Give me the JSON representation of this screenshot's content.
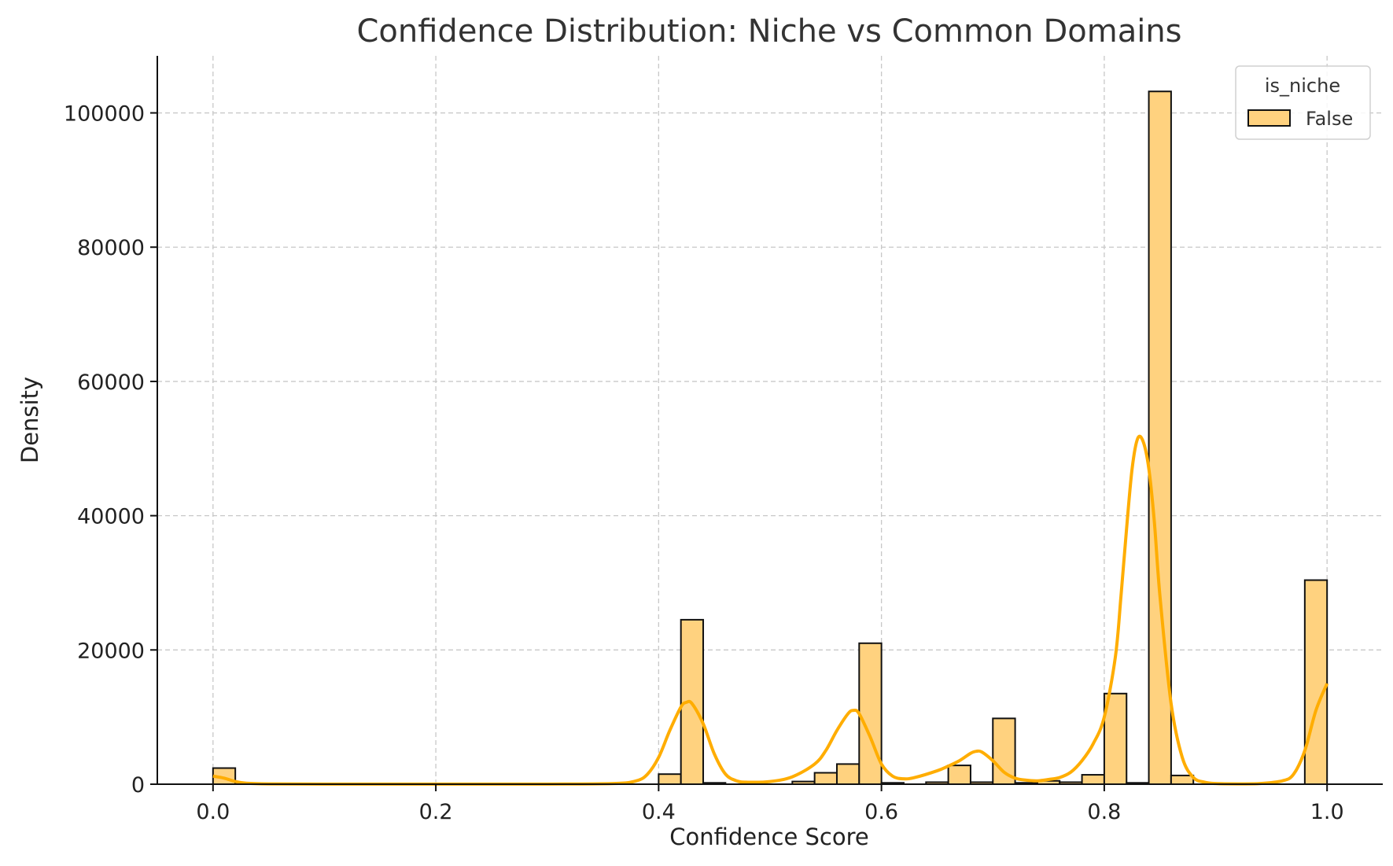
{
  "chart_data": {
    "type": "bar",
    "title": "Confidence Distribution: Niche vs Common Domains",
    "xlabel": "Confidence Score",
    "ylabel": "Density",
    "xlim": [
      -0.05,
      1.05
    ],
    "ylim": [
      0,
      108500
    ],
    "xticks": [
      0.0,
      0.2,
      0.4,
      0.6,
      0.8,
      1.0
    ],
    "xtick_labels": [
      "0.0",
      "0.2",
      "0.4",
      "0.6",
      "0.8",
      "1.0"
    ],
    "yticks": [
      0,
      20000,
      40000,
      60000,
      80000,
      100000
    ],
    "ytick_labels": [
      "0",
      "20000",
      "40000",
      "60000",
      "80000",
      "100000"
    ],
    "grid": true,
    "legend": {
      "title": "is_niche",
      "placement": "top-right",
      "entries": [
        "False"
      ]
    },
    "bin_width": 0.02,
    "series": [
      {
        "name": "False",
        "color": "#ffd27f",
        "edge_color": "#111111",
        "kde_color": "#ffad00",
        "bins": [
          {
            "x0": 0.0,
            "value": 2400
          },
          {
            "x0": 0.02,
            "value": 150
          },
          {
            "x0": 0.4,
            "value": 1500
          },
          {
            "x0": 0.42,
            "value": 24500
          },
          {
            "x0": 0.44,
            "value": 200
          },
          {
            "x0": 0.52,
            "value": 400
          },
          {
            "x0": 0.54,
            "value": 1700
          },
          {
            "x0": 0.56,
            "value": 3000
          },
          {
            "x0": 0.58,
            "value": 21000
          },
          {
            "x0": 0.6,
            "value": 200
          },
          {
            "x0": 0.64,
            "value": 300
          },
          {
            "x0": 0.66,
            "value": 2800
          },
          {
            "x0": 0.68,
            "value": 300
          },
          {
            "x0": 0.7,
            "value": 9800
          },
          {
            "x0": 0.72,
            "value": 200
          },
          {
            "x0": 0.74,
            "value": 500
          },
          {
            "x0": 0.76,
            "value": 300
          },
          {
            "x0": 0.78,
            "value": 1400
          },
          {
            "x0": 0.8,
            "value": 13500
          },
          {
            "x0": 0.82,
            "value": 200
          },
          {
            "x0": 0.84,
            "value": 103200
          },
          {
            "x0": 0.86,
            "value": 1300
          },
          {
            "x0": 0.98,
            "value": 30400
          }
        ],
        "kde": {
          "x": [
            0.0,
            0.01,
            0.02,
            0.03,
            0.05,
            0.1,
            0.2,
            0.3,
            0.36,
            0.38,
            0.39,
            0.4,
            0.41,
            0.42,
            0.425,
            0.43,
            0.44,
            0.45,
            0.46,
            0.47,
            0.48,
            0.5,
            0.52,
            0.54,
            0.55,
            0.56,
            0.57,
            0.575,
            0.58,
            0.59,
            0.6,
            0.61,
            0.62,
            0.63,
            0.65,
            0.66,
            0.67,
            0.68,
            0.685,
            0.69,
            0.7,
            0.71,
            0.72,
            0.73,
            0.74,
            0.75,
            0.76,
            0.77,
            0.78,
            0.79,
            0.8,
            0.81,
            0.815,
            0.82,
            0.825,
            0.83,
            0.835,
            0.84,
            0.845,
            0.85,
            0.86,
            0.87,
            0.88,
            0.89,
            0.9,
            0.92,
            0.94,
            0.96,
            0.97,
            0.98,
            0.99,
            1.0
          ],
          "y": [
            1200,
            900,
            400,
            150,
            50,
            20,
            20,
            20,
            100,
            500,
            1500,
            4000,
            8000,
            11500,
            12200,
            12000,
            9000,
            4500,
            1500,
            500,
            300,
            400,
            1100,
            3000,
            5000,
            8000,
            10500,
            11000,
            10500,
            7000,
            3000,
            1200,
            800,
            1000,
            2000,
            2700,
            3500,
            4600,
            4900,
            4800,
            3500,
            1800,
            900,
            600,
            500,
            700,
            1000,
            1800,
            3500,
            6000,
            10000,
            19000,
            28000,
            38000,
            47000,
            51500,
            51000,
            47000,
            39000,
            28000,
            12000,
            4000,
            1000,
            300,
            100,
            50,
            100,
            500,
            1500,
            5000,
            11000,
            15000
          ]
        }
      }
    ]
  }
}
